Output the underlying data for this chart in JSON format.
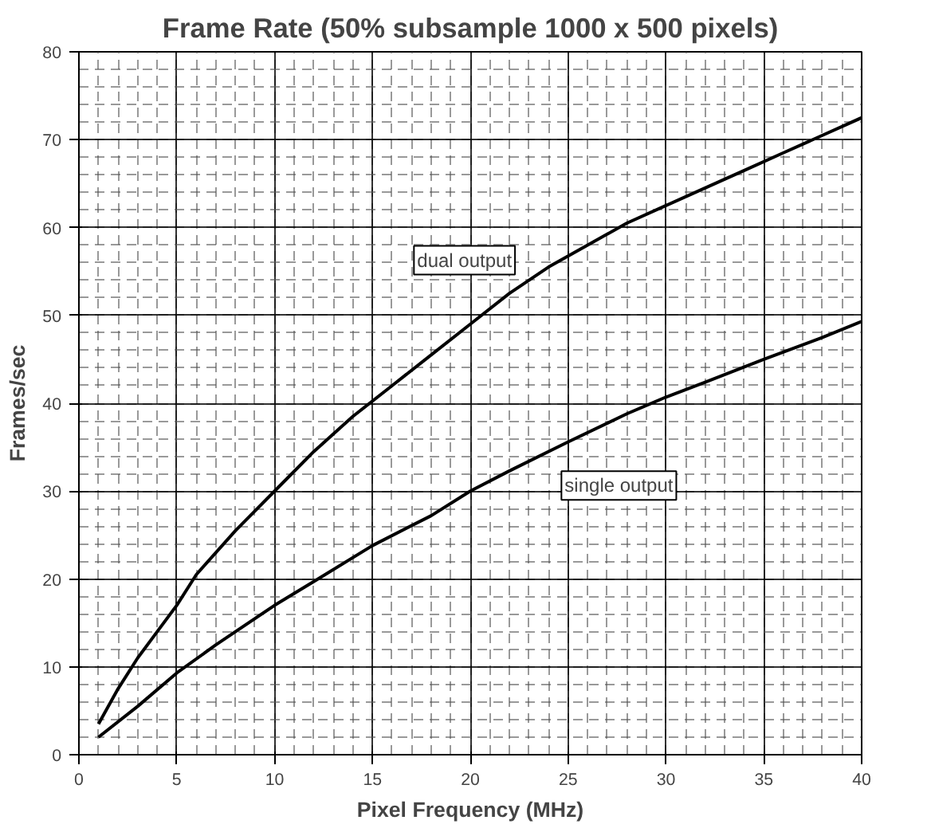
{
  "chart_data": {
    "type": "line",
    "title": "Frame Rate (50% subsample 1000 x 500 pixels)",
    "xlabel": "Pixel Frequency (MHz)",
    "ylabel": "Frames/sec",
    "xlim": [
      0,
      40
    ],
    "ylim": [
      0,
      80
    ],
    "xticks": [
      0,
      5,
      10,
      15,
      20,
      25,
      30,
      35,
      40
    ],
    "yticks": [
      0,
      10,
      20,
      30,
      40,
      50,
      60,
      70,
      80
    ],
    "grid": true,
    "legend": false,
    "marker": "none",
    "line_style": "solid",
    "series": [
      {
        "name": "dual output",
        "color": "#000000",
        "x": [
          1,
          2,
          3,
          4,
          5,
          6,
          8,
          10,
          12,
          14,
          16,
          18,
          20,
          22,
          24,
          26,
          28,
          30,
          32,
          34,
          36,
          38,
          40
        ],
        "values": [
          3.5,
          7.5,
          11,
          14,
          17,
          20.5,
          25.5,
          30,
          34.5,
          38.5,
          42,
          45.5,
          49,
          52.5,
          55.5,
          58,
          60.5,
          62.5,
          64.5,
          66.5,
          68.5,
          70.5,
          72.5
        ]
      },
      {
        "name": "single output",
        "color": "#000000",
        "x": [
          1,
          3,
          5,
          7,
          10,
          12,
          15,
          18,
          20,
          22,
          25,
          28,
          30,
          32,
          35,
          38,
          40
        ],
        "values": [
          2,
          5.5,
          9.3,
          12.5,
          17,
          19.7,
          23.8,
          27.2,
          30,
          32.3,
          35.6,
          38.8,
          40.7,
          42.4,
          45,
          47.5,
          49.3
        ]
      }
    ]
  }
}
